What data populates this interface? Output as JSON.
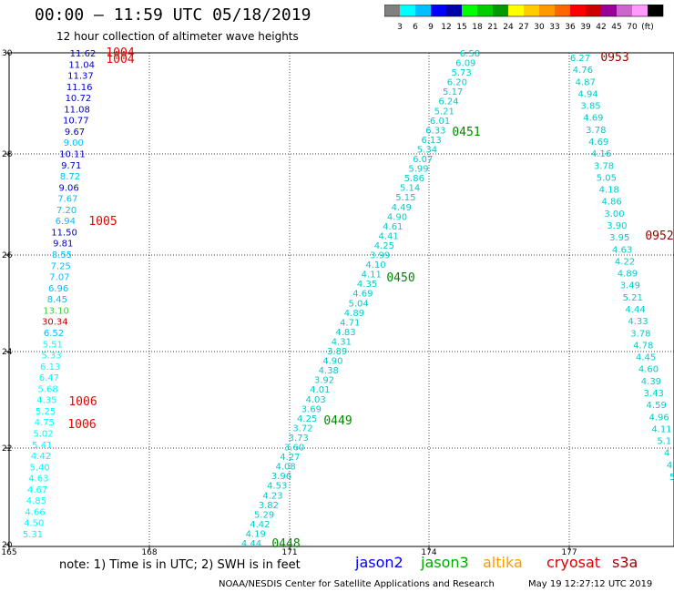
{
  "header": {
    "title": "00:00 – 11:59 UTC 05/18/2019",
    "subtitle": "12 hour collection of altimeter wave heights"
  },
  "colorbar": {
    "colors": [
      "#808080",
      "#00ffff",
      "#00bfff",
      "#0000ff",
      "#0000aa",
      "#00ff00",
      "#00cc00",
      "#009900",
      "#ffff00",
      "#ffcc00",
      "#ff9900",
      "#ff6600",
      "#ff0000",
      "#cc0000",
      "#990099",
      "#cc66cc",
      "#ff99ff",
      "#000000"
    ],
    "labels": [
      "3",
      "6",
      "9",
      "12",
      "15",
      "18",
      "21",
      "24",
      "27",
      "30",
      "33",
      "36",
      "39",
      "42",
      "45",
      "70",
      "(ft)"
    ]
  },
  "map": {
    "lon_ticks": [
      "165",
      "168",
      "171",
      "174",
      "177"
    ],
    "lat_ticks": [
      "20",
      "22",
      "24",
      "26",
      "28",
      "30"
    ]
  },
  "tracks": [
    {
      "id": "west",
      "color": "#0000cc",
      "values": [
        "11.62",
        "11.04",
        "11.37",
        "11.16",
        "10.72",
        "11.08",
        "10.77",
        "9.67",
        "9.00",
        "10.11",
        "9.71",
        "8.72",
        "9.06",
        "7.67",
        "7.20",
        "6.94",
        "11.50",
        "9.81",
        "8.55",
        "7.25",
        "7.07",
        "6.96",
        "8.45",
        "13.10",
        "30.34",
        "6.52",
        "5.51",
        "5.33",
        "6.13",
        "6.47",
        "5.68",
        "4.35",
        "5.25",
        "4.75",
        "5.02",
        "5.41",
        "4.42",
        "5.40",
        "4.63",
        "4.67",
        "4.85",
        "4.66",
        "4.50",
        "5.31"
      ],
      "colors": [
        "#0000cc",
        "#0000cc",
        "#0000cc",
        "#0000cc",
        "#0000cc",
        "#0000cc",
        "#0000cc",
        "#0000cc",
        "#00bfff",
        "#0000cc",
        "#0000cc",
        "#00bfff",
        "#0000cc",
        "#00bfff",
        "#00bfff",
        "#00bfff",
        "#0000cc",
        "#0000cc",
        "#00bfff",
        "#00bfff",
        "#00bfff",
        "#00bfff",
        "#00bfff",
        "#44cc44",
        "#cc0000",
        "#00bfff",
        "#00ffff",
        "#00ffff",
        "#00ffff",
        "#00ffff",
        "#00ffff",
        "#00ffff",
        "#00ffff",
        "#00ffff",
        "#00ffff",
        "#00ffff",
        "#00ffff",
        "#00ffff",
        "#00ffff",
        "#00ffff",
        "#00ffff",
        "#00ffff",
        "#00ffff",
        "#00ffff"
      ]
    },
    {
      "id": "diagonal",
      "values": [
        "6.58",
        "6.09",
        "5.73",
        "6.20",
        "5.17",
        "6.24",
        "5.21",
        "6.01",
        "6.33",
        "6.13",
        "5.34",
        "6.07",
        "5.99",
        "5.86",
        "5.14",
        "5.15",
        "4.49",
        "4.90",
        "4.61",
        "4.41",
        "4.25",
        "3.99",
        "4.10",
        "4.11",
        "4.35",
        "4.69",
        "5.04",
        "4.89",
        "4.71",
        "4.83",
        "4.31",
        "3.89",
        "4.90",
        "4.38",
        "3.92",
        "4.01",
        "4.03",
        "3.69",
        "4.25",
        "3.72",
        "3.73",
        "3.60",
        "4.27",
        "4.08",
        "3.96",
        "4.53",
        "4.23",
        "3.82",
        "5.29",
        "4.42",
        "4.19",
        "4.44"
      ]
    },
    {
      "id": "east",
      "values": [
        "6.27",
        "4.76",
        "4.87",
        "4.94",
        "3.85",
        "4.69",
        "3.78",
        "4.69",
        "4.16",
        "3.78",
        "5.05",
        "4.18",
        "4.86",
        "3.00",
        "3.90",
        "3.95",
        "4.63",
        "4.22",
        "4.89",
        "3.49",
        "5.21",
        "4.44",
        "4.33",
        "3.78",
        "4.78",
        "4.45",
        "4.60",
        "4.39",
        "3.43",
        "4.59",
        "4.96",
        "4.11",
        "5.1",
        "4",
        "4",
        "5"
      ]
    }
  ],
  "pass_times": [
    {
      "label": "1004",
      "color": "#ee0000"
    },
    {
      "label": "1004",
      "color": "#ee0000"
    },
    {
      "label": "1005",
      "color": "#ee0000"
    },
    {
      "label": "1006",
      "color": "#ee0000"
    },
    {
      "label": "1006",
      "color": "#ee0000"
    },
    {
      "label": "0451",
      "color": "#008800"
    },
    {
      "label": "0450",
      "color": "#008800"
    },
    {
      "label": "0449",
      "color": "#008800"
    },
    {
      "label": "0448",
      "color": "#008800"
    },
    {
      "label": "0953",
      "color": "#990000"
    },
    {
      "label": "0952",
      "color": "#990000"
    }
  ],
  "footer": {
    "note": "note:  1) Time is in UTC;  2) SWH is in feet",
    "satellites": [
      {
        "name": "jason2",
        "color": "#0000ee"
      },
      {
        "name": "jason3",
        "color": "#00aa00"
      },
      {
        "name": "altika",
        "color": "#ff9900"
      },
      {
        "name": "cryosat",
        "color": "#dd0000"
      },
      {
        "name": "s3a",
        "color": "#990000"
      }
    ],
    "credit": "NOAA/NESDIS Center for Satellite Applications and Research",
    "timestamp": "May 19 12:27:12 UTC 2019"
  }
}
